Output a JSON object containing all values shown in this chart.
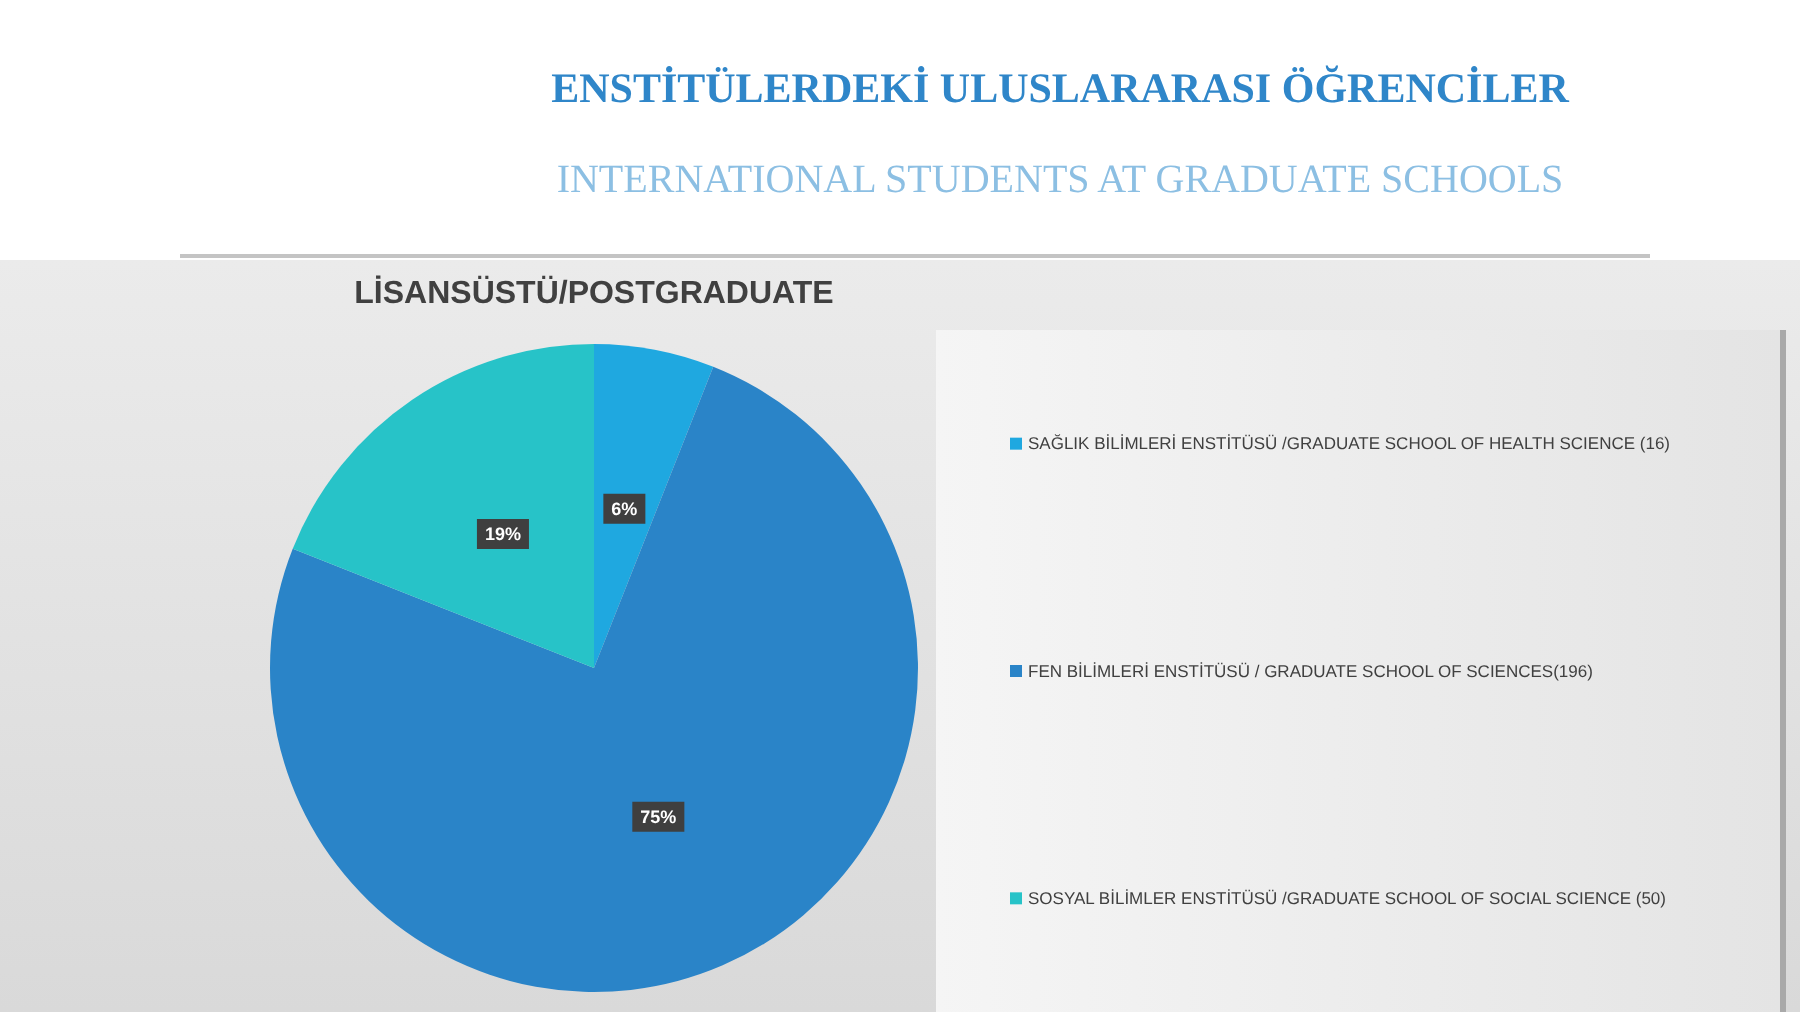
{
  "chart_data": {
    "type": "pie",
    "title": "ENSTİTÜLERDEKİ ULUSLARARASI ÖĞRENCİLER",
    "subtitle": "INTERNATIONAL STUDENTS AT GRADUATE SCHOOLS",
    "annotations": [
      "LİSANSÜSTÜ/POSTGRADUATE"
    ],
    "categories": [
      "SAĞLIK BİLİMLERİ ENSTİTÜSÜ /GRADUATE SCHOOL OF HEALTH SCIENCE (16)",
      "FEN BİLİMLERİ ENSTİTÜSÜ / GRADUATE SCHOOL OF SCIENCES(196)",
      "SOSYAL BİLİMLER ENSTİTÜSÜ /GRADUATE SCHOOL OF SOCIAL SCIENCE (50)"
    ],
    "values": [
      6,
      75,
      19
    ],
    "value_labels": [
      "6%",
      "75%",
      "19%"
    ],
    "colors": [
      "#1fa8e0",
      "#2a84c8",
      "#27c3c8"
    ],
    "legend": "right"
  }
}
